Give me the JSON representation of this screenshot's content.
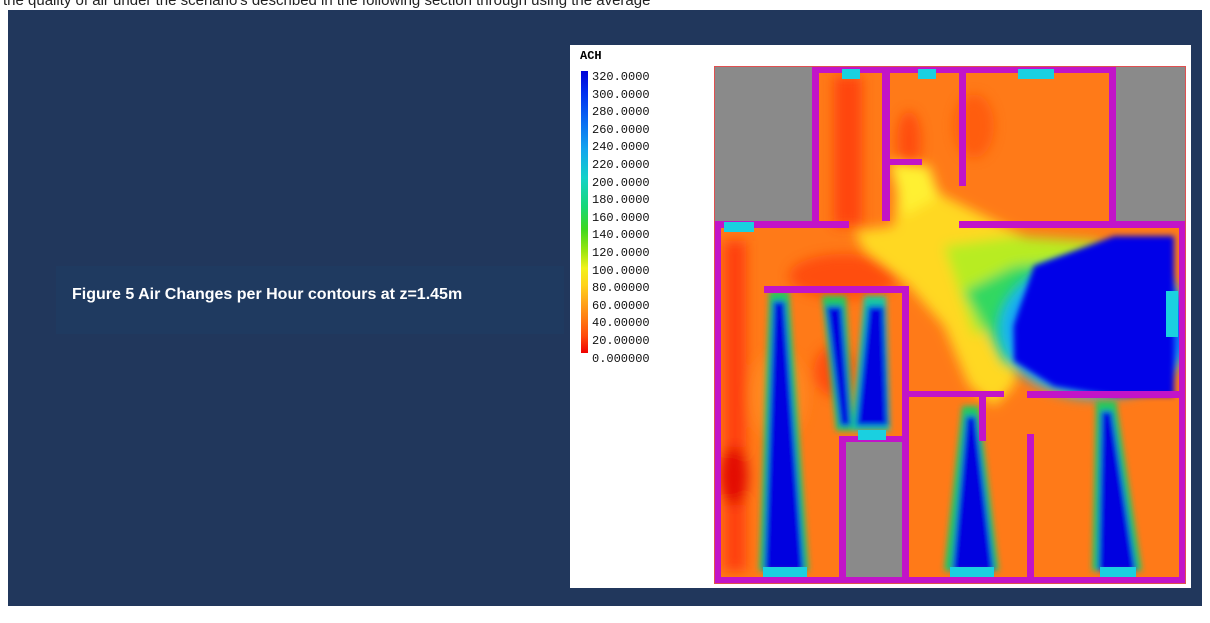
{
  "page": {
    "top_text": "the quality of air under the scenario's described in the following section through using the average"
  },
  "caption": {
    "text": "Figure 5 Air Changes per Hour contours at z=1.45m"
  },
  "figure": {
    "legend": {
      "title": "ACH",
      "labels": [
        "320.0000",
        "300.0000",
        "280.0000",
        "260.0000",
        "240.0000",
        "220.0000",
        "200.0000",
        "180.0000",
        "160.0000",
        "140.0000",
        "120.0000",
        "100.0000",
        "80.00000",
        "60.00000",
        "40.00000",
        "20.00000",
        "0.000000"
      ]
    },
    "colors": {
      "wall": "#c214c8",
      "vent": "#1ad0e0",
      "solid": "#8a8a8a",
      "high_ach": "#0000e0",
      "low_ach": "#ff6a10"
    }
  }
}
